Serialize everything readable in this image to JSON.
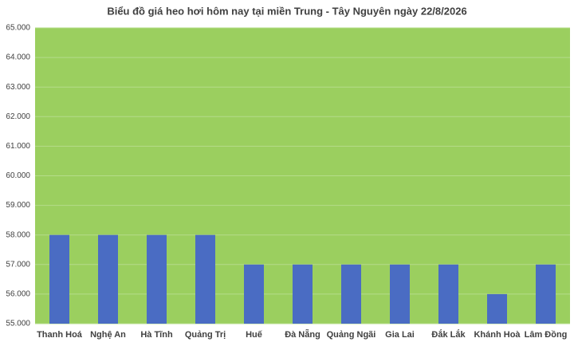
{
  "chart_data": {
    "type": "bar",
    "title": "Biểu đồ giá heo hơi hôm nay tại miền Trung - Tây Nguyên ngày 22/8/2026",
    "categories": [
      "Thanh Hoá",
      "Nghệ An",
      "Hà Tĩnh",
      "Quảng Trị",
      "Huế",
      "Đà Nẵng",
      "Quảng Ngãi",
      "Gia Lai",
      "Đắk Lắk",
      "Khánh Hoà",
      "Lâm Đồng"
    ],
    "values": [
      58000,
      58000,
      58000,
      58000,
      57000,
      57000,
      57000,
      57000,
      57000,
      56000,
      57000
    ],
    "color": "#4a6cc3",
    "plot_background": "#9bcf5f",
    "ylim": [
      55000,
      65000
    ],
    "yticks": [
      {
        "value": 55000,
        "label": "55.000"
      },
      {
        "value": 56000,
        "label": "56.000"
      },
      {
        "value": 57000,
        "label": "57.000"
      },
      {
        "value": 58000,
        "label": "58.000"
      },
      {
        "value": 59000,
        "label": "59.000"
      },
      {
        "value": 60000,
        "label": "60.000"
      },
      {
        "value": 61000,
        "label": "61.000"
      },
      {
        "value": 62000,
        "label": "62.000"
      },
      {
        "value": 63000,
        "label": "63.000"
      },
      {
        "value": 64000,
        "label": "64.000"
      },
      {
        "value": 65000,
        "label": "65.000"
      }
    ],
    "grid": true
  }
}
